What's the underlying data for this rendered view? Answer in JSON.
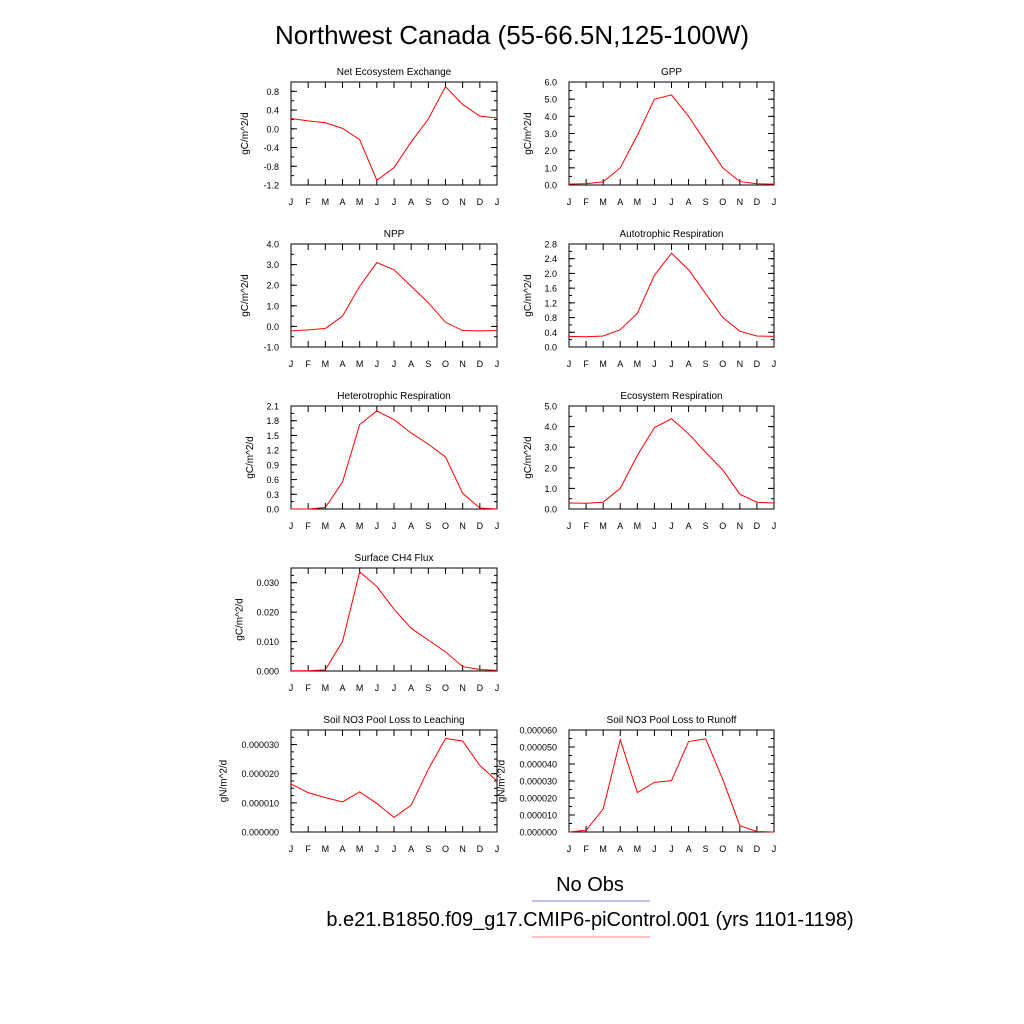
{
  "figure": {
    "title": "Northwest Canada (55-66.5N,125-100W)",
    "legend": [
      {
        "label": "No Obs",
        "color": "#8080ff"
      },
      {
        "label": "b.e21.B1850.f09_g17.CMIP6-piControl.001 (yrs 1101-1198)",
        "color": "#ff8080"
      }
    ]
  },
  "colors": {
    "series": "#ff0000",
    "axis": "#000000"
  },
  "chart_data": [
    {
      "type": "line",
      "title": "Net Ecosystem Exchange",
      "ylabel": "gC/m^2/d",
      "x": [
        "J",
        "F",
        "M",
        "A",
        "M",
        "J",
        "J",
        "A",
        "S",
        "O",
        "N",
        "D",
        "J"
      ],
      "ylim": [
        -1.2,
        1.0
      ],
      "yticks": [
        -1.2,
        -0.8,
        -0.4,
        0.0,
        0.4,
        0.8
      ],
      "ytick_labels": [
        "-1.2",
        "-0.8",
        "-0.4",
        "0.0",
        "0.4",
        "0.8"
      ],
      "minor_step": 0.2,
      "series": [
        {
          "values": [
            0.22,
            0.17,
            0.13,
            0.01,
            -0.23,
            -1.1,
            -0.83,
            -0.28,
            0.21,
            0.9,
            0.52,
            0.27,
            0.23
          ]
        }
      ]
    },
    {
      "type": "line",
      "title": "GPP",
      "ylabel": "gC/m^2/d",
      "x": [
        "J",
        "F",
        "M",
        "A",
        "M",
        "J",
        "J",
        "A",
        "S",
        "O",
        "N",
        "D",
        "J"
      ],
      "ylim": [
        0.0,
        6.0
      ],
      "yticks": [
        0.0,
        1.0,
        2.0,
        3.0,
        4.0,
        5.0,
        6.0
      ],
      "ytick_labels": [
        "0.0",
        "1.0",
        "2.0",
        "3.0",
        "4.0",
        "5.0",
        "6.0"
      ],
      "minor_step": 0.5,
      "series": [
        {
          "values": [
            0.05,
            0.08,
            0.18,
            1.0,
            2.9,
            5.0,
            5.25,
            4.0,
            2.5,
            1.0,
            0.2,
            0.07,
            0.05
          ]
        }
      ]
    },
    {
      "type": "line",
      "title": "NPP",
      "ylabel": "gC/m^2/d",
      "x": [
        "J",
        "F",
        "M",
        "A",
        "M",
        "J",
        "J",
        "A",
        "S",
        "O",
        "N",
        "D",
        "J"
      ],
      "ylim": [
        -1.0,
        4.0
      ],
      "yticks": [
        -1.0,
        0.0,
        1.0,
        2.0,
        3.0,
        4.0
      ],
      "ytick_labels": [
        "-1.0",
        "0.0",
        "1.0",
        "2.0",
        "3.0",
        "4.0"
      ],
      "minor_step": 0.5,
      "series": [
        {
          "values": [
            -0.22,
            -0.17,
            -0.1,
            0.5,
            1.95,
            3.1,
            2.75,
            1.95,
            1.15,
            0.2,
            -0.2,
            -0.22,
            -0.2
          ]
        }
      ]
    },
    {
      "type": "line",
      "title": "Autotrophic Respiration",
      "ylabel": "gC/m^2/d",
      "x": [
        "J",
        "F",
        "M",
        "A",
        "M",
        "J",
        "J",
        "A",
        "S",
        "O",
        "N",
        "D",
        "J"
      ],
      "ylim": [
        0.0,
        2.8
      ],
      "yticks": [
        0.0,
        0.4,
        0.8,
        1.2,
        1.6,
        2.0,
        2.4,
        2.8
      ],
      "ytick_labels": [
        "0.0",
        "0.4",
        "0.8",
        "1.2",
        "1.6",
        "2.0",
        "2.4",
        "2.8"
      ],
      "minor_step": 0.2,
      "series": [
        {
          "values": [
            0.29,
            0.28,
            0.3,
            0.47,
            0.92,
            1.95,
            2.55,
            2.1,
            1.45,
            0.8,
            0.43,
            0.3,
            0.29
          ]
        }
      ]
    },
    {
      "type": "line",
      "title": "Heterotrophic Respiration",
      "ylabel": "gC/m^2/d",
      "x": [
        "J",
        "F",
        "M",
        "A",
        "M",
        "J",
        "J",
        "A",
        "S",
        "O",
        "N",
        "D",
        "J"
      ],
      "ylim": [
        0.0,
        2.1
      ],
      "yticks": [
        0.0,
        0.3,
        0.6,
        0.9,
        1.2,
        1.5,
        1.8,
        2.1
      ],
      "ytick_labels": [
        "0.0",
        "0.3",
        "0.6",
        "0.9",
        "1.2",
        "1.5",
        "1.8",
        "2.1"
      ],
      "minor_step": 0.15,
      "series": [
        {
          "values": [
            0.0,
            0.0,
            0.03,
            0.55,
            1.72,
            2.0,
            1.82,
            1.55,
            1.32,
            1.06,
            0.32,
            0.02,
            0.0
          ]
        }
      ]
    },
    {
      "type": "line",
      "title": "Ecosystem Respiration",
      "ylabel": "gC/m^2/d",
      "x": [
        "J",
        "F",
        "M",
        "A",
        "M",
        "J",
        "J",
        "A",
        "S",
        "O",
        "N",
        "D",
        "J"
      ],
      "ylim": [
        0.0,
        5.0
      ],
      "yticks": [
        0.0,
        1.0,
        2.0,
        3.0,
        4.0,
        5.0
      ],
      "ytick_labels": [
        "0.0",
        "1.0",
        "2.0",
        "3.0",
        "4.0",
        "5.0"
      ],
      "minor_step": 0.5,
      "series": [
        {
          "values": [
            0.29,
            0.28,
            0.33,
            1.0,
            2.6,
            3.95,
            4.38,
            3.65,
            2.75,
            1.9,
            0.72,
            0.33,
            0.29
          ]
        }
      ]
    },
    {
      "type": "line",
      "title": "Surface CH4 Flux",
      "ylabel": "gC/m^2/d",
      "x": [
        "J",
        "F",
        "M",
        "A",
        "M",
        "J",
        "J",
        "A",
        "S",
        "O",
        "N",
        "D",
        "J"
      ],
      "ylim": [
        0.0,
        0.035
      ],
      "yticks": [
        0.0,
        0.01,
        0.02,
        0.03
      ],
      "ytick_labels": [
        "0.000",
        "0.010",
        "0.020",
        "0.030"
      ],
      "minor_step": 0.0025,
      "series": [
        {
          "values": [
            0.0001,
            0.0001,
            0.0004,
            0.01,
            0.0337,
            0.0287,
            0.021,
            0.0145,
            0.0105,
            0.0065,
            0.0015,
            0.0005,
            0.0002
          ]
        }
      ]
    },
    {
      "type": "line",
      "title": "Soil NO3 Pool Loss to Leaching",
      "ylabel": "gN/m^2/d",
      "x": [
        "J",
        "F",
        "M",
        "A",
        "M",
        "J",
        "J",
        "A",
        "S",
        "O",
        "N",
        "D",
        "J"
      ],
      "ylim": [
        0.0,
        3.5e-05
      ],
      "yticks": [
        0.0,
        1e-05,
        2e-05,
        3e-05
      ],
      "ytick_labels": [
        "0.000000",
        "0.000010",
        "0.000020",
        "0.000030"
      ],
      "minor_step": 2.5e-06,
      "series": [
        {
          "values": [
            1.65e-05,
            1.35e-05,
            1.18e-05,
            1.03e-05,
            1.38e-05,
            9.8e-06,
            5e-06,
            9.2e-06,
            2.15e-05,
            3.21e-05,
            3.12e-05,
            2.28e-05,
            1.75e-05
          ]
        }
      ]
    },
    {
      "type": "line",
      "title": "Soil NO3 Pool Loss to Runoff",
      "ylabel": "gN/m^2/d",
      "x": [
        "J",
        "F",
        "M",
        "A",
        "M",
        "J",
        "J",
        "A",
        "S",
        "O",
        "N",
        "D",
        "J"
      ],
      "ylim": [
        0.0,
        6e-05
      ],
      "yticks": [
        0.0,
        1e-05,
        2e-05,
        3e-05,
        4e-05,
        5e-05,
        6e-05
      ],
      "ytick_labels": [
        "0.000000",
        "0.000010",
        "0.000020",
        "0.000030",
        "0.000040",
        "0.000050",
        "0.000060"
      ],
      "minor_step": 5e-06,
      "series": [
        {
          "values": [
            0.0,
            1e-06,
            1.35e-05,
            5.42e-05,
            2.32e-05,
            2.92e-05,
            3.02e-05,
            5.32e-05,
            5.48e-05,
            3.1e-05,
            3.7e-06,
            3e-07,
            0.0
          ]
        }
      ]
    }
  ]
}
